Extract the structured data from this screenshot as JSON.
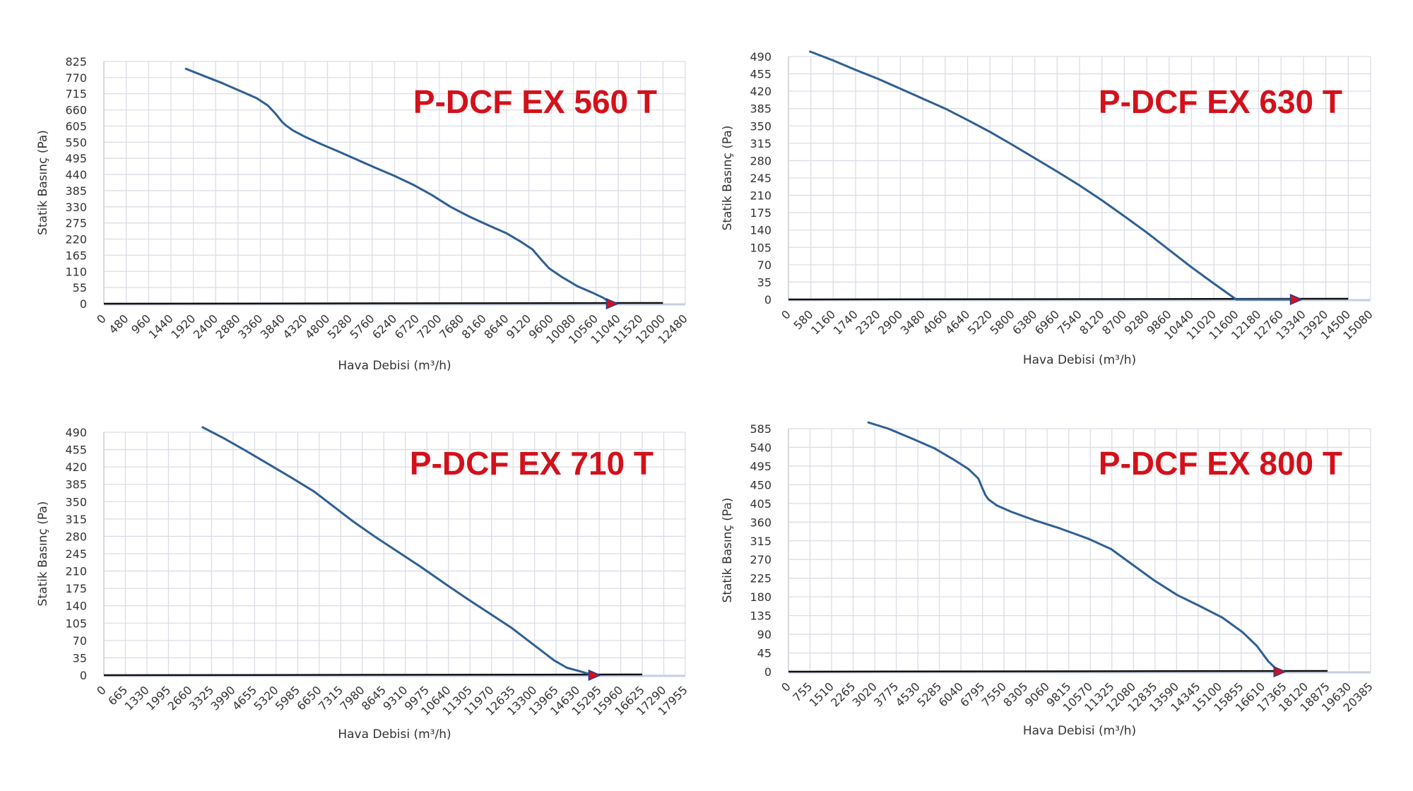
{
  "colors": {
    "curve": "#2f5f93",
    "grid": "#dcdde6",
    "baseline": "#111111",
    "marker": "#d3111b",
    "title": "#d3111b"
  },
  "chart_data": [
    {
      "type": "line",
      "title": "P-DCF EX 560 T",
      "xlabel": "Hava Debisi (m³/h)",
      "ylabel": "Statik Basınç (Pa)",
      "x_ticks": [
        0,
        480,
        960,
        1440,
        1920,
        2400,
        2880,
        3360,
        3840,
        4320,
        4800,
        5280,
        5760,
        6240,
        6720,
        7200,
        7680,
        8160,
        8640,
        9120,
        9600,
        10080,
        10560,
        11040,
        11520,
        12000,
        12480
      ],
      "y_ticks": [
        0,
        55,
        110,
        165,
        220,
        275,
        330,
        385,
        440,
        495,
        550,
        605,
        660,
        715,
        770,
        825
      ],
      "xlim": [
        0,
        12480
      ],
      "ylim": [
        0,
        825
      ],
      "grid": true,
      "baseline_end_x": 12000,
      "marker": {
        "x": 10910,
        "y": 0
      },
      "series": [
        {
          "x": [
            1760,
            2160,
            2560,
            2960,
            3280,
            3520,
            3680,
            3820,
            3900,
            4060,
            4320,
            4640,
            5040,
            5440,
            5840,
            6240,
            6640,
            7040,
            7440,
            7840,
            8240,
            8640,
            8960,
            9200,
            9360,
            9560,
            9840,
            10160,
            10480,
            10720,
            10910
          ],
          "values": [
            800,
            775,
            750,
            722,
            700,
            675,
            648,
            620,
            608,
            590,
            568,
            545,
            518,
            490,
            462,
            435,
            405,
            370,
            330,
            297,
            268,
            240,
            210,
            185,
            155,
            120,
            90,
            60,
            38,
            20,
            0
          ]
        }
      ]
    },
    {
      "type": "line",
      "title": "P-DCF EX 630 T",
      "xlabel": "Hava Debisi (m³/h)",
      "ylabel": "Statik Basınç (Pa)",
      "x_ticks": [
        0,
        580,
        1160,
        1740,
        2320,
        2900,
        3480,
        4060,
        4640,
        5220,
        5800,
        6380,
        6960,
        7540,
        8120,
        8700,
        9280,
        9860,
        10440,
        11020,
        11600,
        12180,
        12760,
        13340,
        13920,
        14500,
        15080
      ],
      "y_ticks": [
        0,
        35,
        70,
        105,
        140,
        175,
        210,
        245,
        280,
        315,
        350,
        385,
        420,
        455,
        490
      ],
      "xlim": [
        0,
        15080
      ],
      "ylim": [
        0,
        490
      ],
      "grid": true,
      "baseline_end_x": 14500,
      "marker": {
        "x": 13150,
        "y": 0
      },
      "series": [
        {
          "x": [
            560,
            1160,
            1740,
            2320,
            2900,
            3480,
            4060,
            4640,
            5220,
            5800,
            6380,
            6960,
            7540,
            8120,
            8700,
            9280,
            9860,
            10440,
            11020,
            11600,
            12180,
            12760,
            13150
          ],
          "values": [
            500,
            482,
            463,
            445,
            425,
            405,
            385,
            362,
            338,
            312,
            285,
            258,
            230,
            200,
            168,
            135,
            100,
            65,
            32,
            0,
            0,
            0,
            0
          ]
        }
      ]
    },
    {
      "type": "line",
      "title": "P-DCF EX 710 T",
      "xlabel": "Hava Debisi (m³/h)",
      "ylabel": "Statik Basınç (Pa)",
      "x_ticks": [
        0,
        665,
        1330,
        1995,
        2660,
        3325,
        3990,
        4655,
        5320,
        5985,
        6650,
        7315,
        7980,
        8645,
        9310,
        9975,
        10640,
        11305,
        11970,
        12635,
        13300,
        13965,
        14630,
        15295,
        15960,
        16625,
        17290,
        17955
      ],
      "y_ticks": [
        0,
        35,
        70,
        105,
        140,
        175,
        210,
        245,
        280,
        315,
        350,
        385,
        420,
        455,
        490
      ],
      "xlim": [
        0,
        17955
      ],
      "ylim": [
        0,
        490
      ],
      "grid": true,
      "baseline_end_x": 16625,
      "marker": {
        "x": 15150,
        "y": 0
      },
      "series": [
        {
          "x": [
            3050,
            3700,
            4400,
            5100,
            5800,
            6500,
            7100,
            7700,
            8400,
            9100,
            9800,
            10500,
            11200,
            11900,
            12600,
            13300,
            13900,
            14300,
            14700,
            15000,
            15150
          ],
          "values": [
            500,
            478,
            452,
            425,
            398,
            370,
            340,
            310,
            278,
            248,
            218,
            186,
            155,
            125,
            95,
            60,
            30,
            15,
            8,
            2,
            0
          ]
        }
      ]
    },
    {
      "type": "line",
      "title": "P-DCF EX 800 T",
      "xlabel": "Hava Debisi (m³/h)",
      "ylabel": "Statik Basınç (Pa)",
      "x_ticks": [
        0,
        755,
        1510,
        2265,
        3020,
        3775,
        4530,
        5285,
        6040,
        6795,
        7550,
        8305,
        9060,
        9815,
        10570,
        11325,
        12080,
        12835,
        13590,
        14345,
        15100,
        15855,
        16610,
        17365,
        18120,
        18875,
        19630,
        20385
      ],
      "y_ticks": [
        0,
        45,
        90,
        135,
        180,
        225,
        270,
        315,
        360,
        405,
        450,
        495,
        540,
        585
      ],
      "xlim": [
        0,
        20385
      ],
      "ylim": [
        0,
        585
      ],
      "grid": true,
      "baseline_end_x": 18875,
      "marker": {
        "x": 17200,
        "y": 0
      },
      "series": [
        {
          "x": [
            2800,
            3500,
            4300,
            5100,
            5800,
            6300,
            6650,
            6800,
            6900,
            7000,
            7300,
            7800,
            8600,
            9500,
            10500,
            11300,
            12000,
            12800,
            13600,
            14400,
            15200,
            15900,
            16400,
            16800,
            17100,
            17200
          ],
          "values": [
            600,
            585,
            562,
            538,
            510,
            488,
            465,
            440,
            425,
            415,
            400,
            385,
            365,
            345,
            320,
            295,
            260,
            220,
            185,
            158,
            130,
            95,
            62,
            25,
            5,
            0
          ]
        }
      ]
    }
  ]
}
